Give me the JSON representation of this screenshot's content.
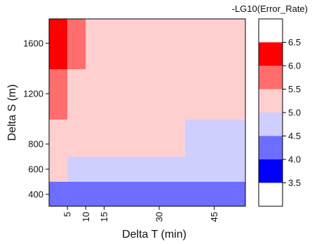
{
  "chart_data": {
    "type": "heatmap",
    "xlabel": "Delta T (min)",
    "ylabel": "Delta S (m)",
    "x_ticks": [
      5,
      10,
      15,
      30,
      45
    ],
    "y_ticks": [
      400,
      600,
      800,
      1200,
      1600
    ],
    "xlim": [
      0,
      53.5
    ],
    "y_scale": "custom (equally spaced ticks 400, 600, 800; then 1200, 1600)",
    "colorbar": {
      "title": "-LG10(Error_Rate)",
      "levels": [
        3.5,
        4.0,
        4.5,
        5.0,
        5.5,
        6.0,
        6.5
      ],
      "colors": [
        "#ffffff",
        "#0000ff",
        "#6d6dff",
        "#cfcfff",
        "#ffcfcf",
        "#ff6d6d",
        "#ff0000",
        "#ffffff"
      ]
    },
    "cells": [
      {
        "x0": 0,
        "x1": 53.5,
        "y0": 300,
        "y1": 500,
        "value": 4.5,
        "color": "#6d6dff"
      },
      {
        "x0": 0,
        "x1": 5,
        "y0": 500,
        "y1": 700,
        "value": 5.25,
        "color": "#ffcfcf"
      },
      {
        "x0": 5,
        "x1": 53.5,
        "y0": 500,
        "y1": 700,
        "value": 4.75,
        "color": "#cfcfff"
      },
      {
        "x0": 0,
        "x1": 37,
        "y0": 700,
        "y1": 900,
        "value": 5.25,
        "color": "#ffcfcf"
      },
      {
        "x0": 37,
        "x1": 53.5,
        "y0": 700,
        "y1": 900,
        "value": 4.75,
        "color": "#cfcfff"
      },
      {
        "x0": 0,
        "x1": 5,
        "y0": 900,
        "y1": 1400,
        "value": 5.75,
        "color": "#ff6d6d"
      },
      {
        "x0": 5,
        "x1": 53.5,
        "y0": 900,
        "y1": 1400,
        "value": 5.25,
        "color": "#ffcfcf"
      },
      {
        "x0": 0,
        "x1": 5,
        "y0": 1400,
        "y1": 1800,
        "value": 6.25,
        "color": "#ff0000"
      },
      {
        "x0": 5,
        "x1": 10,
        "y0": 1400,
        "y1": 1800,
        "value": 5.75,
        "color": "#ff6d6d"
      },
      {
        "x0": 10,
        "x1": 53.5,
        "y0": 1400,
        "y1": 1800,
        "value": 5.25,
        "color": "#ffcfcf"
      }
    ]
  }
}
